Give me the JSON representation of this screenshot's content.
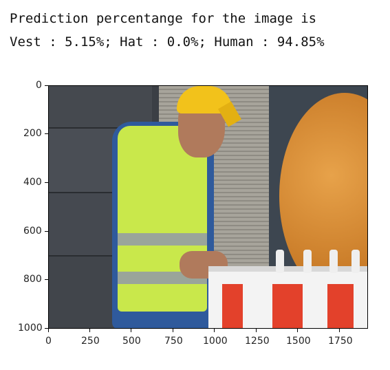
{
  "output": {
    "line1": "Prediction percentange for the image is",
    "line2": "Vest : 5.15%; Hat : 0.0%; Human : 94.85%"
  },
  "plot": {
    "y_ticks": [
      "0",
      "200",
      "400",
      "600",
      "800",
      "1000"
    ],
    "x_ticks": [
      "0",
      "250",
      "500",
      "750",
      "1000",
      "1250",
      "1500",
      "1750"
    ]
  }
}
